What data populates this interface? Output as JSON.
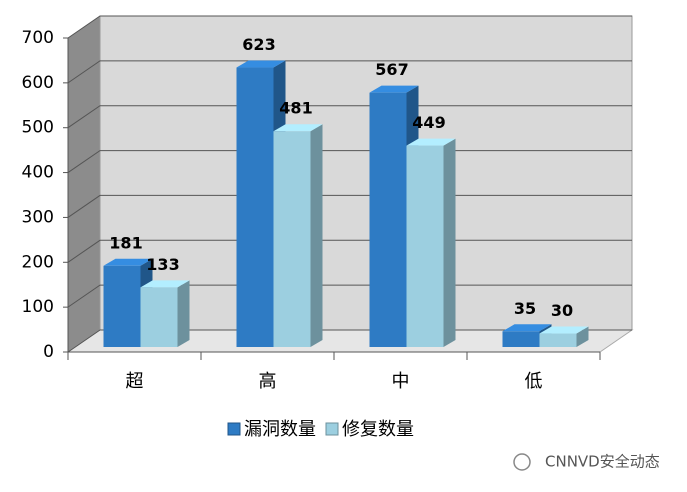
{
  "chart_data": {
    "type": "bar3d",
    "categories": [
      "超",
      "高",
      "中",
      "低"
    ],
    "series": [
      {
        "name": "漏洞数量",
        "color": "#2e7bc4",
        "values": [
          181,
          623,
          567,
          35
        ]
      },
      {
        "name": "修复数量",
        "color": "#9ccfe0",
        "values": [
          133,
          481,
          449,
          30
        ]
      }
    ],
    "ylim": [
      0,
      700
    ],
    "yticks": [
      0,
      100,
      200,
      300,
      400,
      500,
      600,
      700
    ],
    "grid": true,
    "legend": "bottom",
    "watermark": "CNNVD安全动态"
  }
}
